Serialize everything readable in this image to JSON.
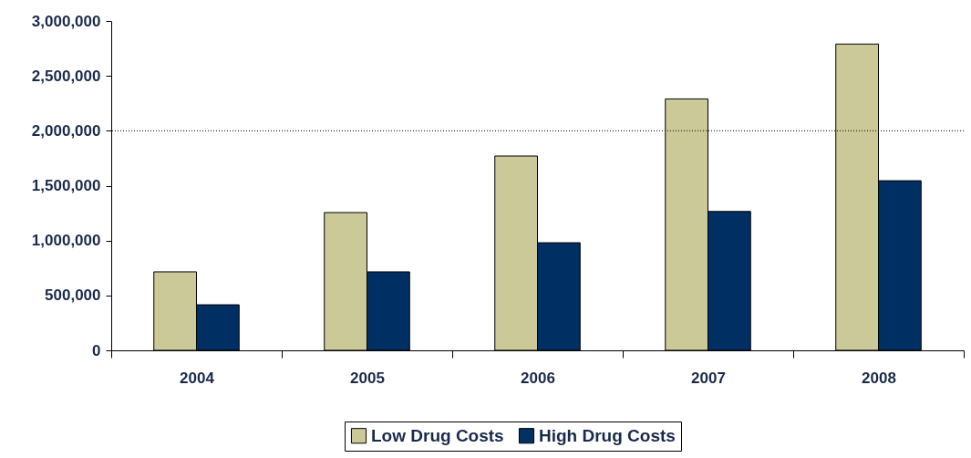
{
  "chart_data": {
    "type": "bar",
    "categories": [
      "2004",
      "2005",
      "2006",
      "2007",
      "2008"
    ],
    "series": [
      {
        "name": "Low Drug Costs",
        "color": "#cbc998",
        "values": [
          715000,
          1255000,
          1770000,
          2290000,
          2790000
        ]
      },
      {
        "name": "High Drug Costs",
        "color": "#003063",
        "values": [
          415000,
          715000,
          980000,
          1265000,
          1545000
        ]
      }
    ],
    "ylim": [
      0,
      3000000
    ],
    "yticks": [
      {
        "value": 0,
        "label": "0"
      },
      {
        "value": 500000,
        "label": "500,000"
      },
      {
        "value": 1000000,
        "label": "1,000,000"
      },
      {
        "value": 1500000,
        "label": "1,500,000"
      },
      {
        "value": 2000000,
        "label": "2,000,000"
      },
      {
        "value": 2500000,
        "label": "2,500,000"
      },
      {
        "value": 3000000,
        "label": "3,000,000"
      }
    ],
    "ref_lines": [
      {
        "axis": "y",
        "value": 2000000,
        "line_style": "dotted"
      }
    ],
    "legend": "bottom"
  }
}
